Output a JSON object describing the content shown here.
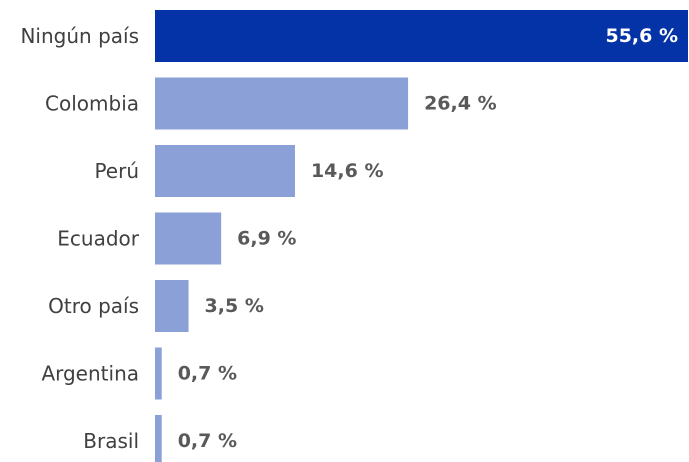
{
  "chart_data": {
    "type": "bar",
    "orientation": "horizontal",
    "categories": [
      "Ningún país",
      "Colombia",
      "Perú",
      "Ecuador",
      "Otro país",
      "Argentina",
      "Brasil"
    ],
    "values": [
      55.6,
      26.4,
      14.6,
      6.9,
      3.5,
      0.7,
      0.7
    ],
    "value_labels": [
      "55,6 %",
      "26,4 %",
      "14,6 %",
      "6,9 %",
      "3,5 %",
      "0,7 %",
      "0,7 %"
    ],
    "highlight_index": 0,
    "title": "",
    "xlabel": "",
    "ylabel": "",
    "xlim": [
      0,
      55.6
    ],
    "grid": false,
    "legend": "none"
  },
  "colors": {
    "highlight_bar": "#0433a8",
    "bar": "#8aa0d6",
    "highlight_label": "#ffffff",
    "value_label": "#595959",
    "category_label": "#404040"
  }
}
